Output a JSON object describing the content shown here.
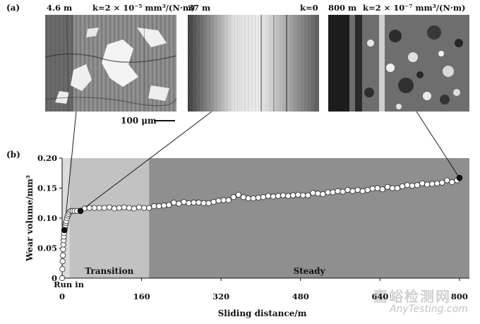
{
  "panel_a": {
    "label": "(a)",
    "micrographs": [
      {
        "distance": "4.6 m",
        "k": "k=2 × 10⁻⁵ mm³/(N·m)"
      },
      {
        "distance": "37 m",
        "k": "k=0"
      },
      {
        "distance": "800 m",
        "k": "k=2 × 10⁻⁷ mm³/(N·m)"
      }
    ],
    "scale_bar": "100 μm"
  },
  "panel_b": {
    "label": "(b)"
  },
  "chart_data": {
    "type": "scatter",
    "xlabel": "Sliding distance/m",
    "ylabel": "Wear volume/mm³",
    "xlim": [
      0,
      820
    ],
    "ylim": [
      0,
      0.2
    ],
    "xticks": [
      0,
      160,
      320,
      480,
      640,
      800
    ],
    "yticks": [
      0,
      0.05,
      0.1,
      0.15,
      0.2
    ],
    "ytick_labels": [
      "0",
      "0.05",
      "0.10",
      "0.15",
      "0.20"
    ],
    "regions": [
      {
        "label": "Run in",
        "x": [
          0,
          15
        ],
        "color": "#dcdcdc"
      },
      {
        "label": "Transition",
        "x": [
          15,
          175
        ],
        "color": "#c2c2c2"
      },
      {
        "label": "Steady",
        "x": [
          175,
          820
        ],
        "color": "#8f8f8f"
      }
    ],
    "highlighted_points": [
      {
        "x": 4.6,
        "y": 0.08
      },
      {
        "x": 37,
        "y": 0.112
      },
      {
        "x": 800,
        "y": 0.167
      }
    ],
    "series": [
      {
        "x": [
          0,
          0.5,
          1,
          1.5,
          2,
          2.5,
          3,
          3.5,
          4,
          4.6,
          5.5,
          6.5,
          7.5,
          8.5,
          10,
          11.5,
          13,
          15,
          18,
          21,
          25,
          30,
          37,
          45,
          55,
          65,
          75,
          85,
          95,
          105,
          115,
          125,
          135,
          145,
          155,
          165,
          175,
          185,
          195,
          205,
          215,
          225,
          235,
          245,
          255,
          265,
          275,
          285,
          295,
          305,
          315,
          325,
          335,
          345,
          355,
          365,
          375,
          385,
          395,
          405,
          415,
          425,
          435,
          445,
          455,
          465,
          475,
          485,
          495,
          505,
          515,
          525,
          535,
          545,
          555,
          565,
          575,
          585,
          595,
          605,
          615,
          625,
          635,
          645,
          655,
          665,
          675,
          685,
          695,
          705,
          715,
          725,
          735,
          745,
          755,
          765,
          775,
          785,
          795,
          800
        ],
        "y": [
          0.0,
          0.015,
          0.028,
          0.038,
          0.048,
          0.056,
          0.063,
          0.069,
          0.075,
          0.08,
          0.084,
          0.088,
          0.092,
          0.095,
          0.1,
          0.104,
          0.107,
          0.11,
          0.112,
          0.112,
          0.112,
          0.112,
          0.112,
          0.116,
          0.117,
          0.117,
          0.117,
          0.117,
          0.118,
          0.116,
          0.117,
          0.118,
          0.117,
          0.116,
          0.118,
          0.117,
          0.117,
          0.12,
          0.12,
          0.121,
          0.122,
          0.126,
          0.124,
          0.127,
          0.125,
          0.126,
          0.126,
          0.125,
          0.125,
          0.127,
          0.129,
          0.13,
          0.13,
          0.135,
          0.139,
          0.135,
          0.133,
          0.133,
          0.134,
          0.135,
          0.137,
          0.136,
          0.137,
          0.138,
          0.137,
          0.138,
          0.139,
          0.138,
          0.138,
          0.142,
          0.141,
          0.14,
          0.143,
          0.143,
          0.145,
          0.144,
          0.147,
          0.145,
          0.147,
          0.145,
          0.147,
          0.149,
          0.15,
          0.148,
          0.152,
          0.15,
          0.15,
          0.153,
          0.155,
          0.154,
          0.155,
          0.158,
          0.156,
          0.157,
          0.158,
          0.159,
          0.163,
          0.16,
          0.163,
          0.167
        ]
      }
    ]
  },
  "watermark": {
    "line1": "嘉峪检测网",
    "line2": "AnyTesting.com"
  }
}
